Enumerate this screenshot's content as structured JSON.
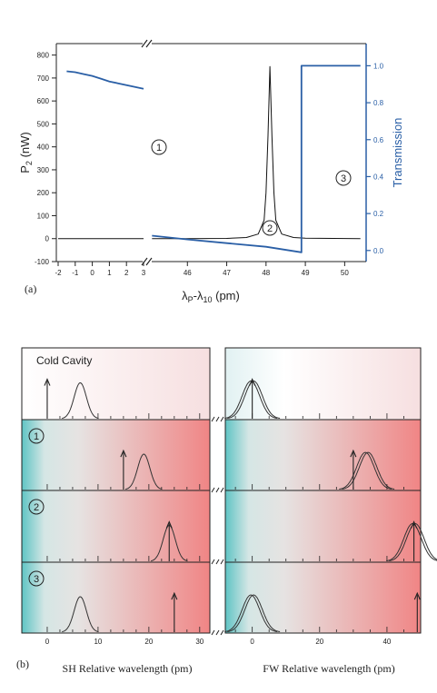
{
  "panel_a": {
    "label": "(a)",
    "xlabel_main": "λP-λ10 (pm)",
    "ylabel_left": "P2 (nW)",
    "ylabel_right": "Transmission",
    "region_markers": [
      "1",
      "2",
      "3"
    ],
    "colors": {
      "p2": "#111111",
      "transmission": "#2a5fa6",
      "axis_right": "#2a5fa6"
    }
  },
  "panel_b": {
    "label": "(b)",
    "rows": [
      {
        "name": "Cold Cavity",
        "marker": ""
      },
      {
        "name": "",
        "marker": "1"
      },
      {
        "name": "",
        "marker": "2"
      },
      {
        "name": "",
        "marker": "3"
      }
    ],
    "xlabel_left": "SH Relative wavelength (pm)",
    "xlabel_right": "FW Relative wavelength (pm)",
    "colors": {
      "cyan": "#5fc4c4",
      "mid": "#e6e3e2",
      "red": "#f08585"
    }
  },
  "chart_data": [
    {
      "type": "line",
      "title": "",
      "xlabel": "λP-λ10 (pm)",
      "ylabel": "P2 (nW)",
      "y2label": "Transmission",
      "left_segment": {
        "xlim": [
          -2,
          3
        ],
        "xticks": [
          -2,
          -1,
          0,
          1,
          2,
          3
        ]
      },
      "right_segment": {
        "xlim": [
          45,
          50.5
        ],
        "xticks": [
          46,
          47,
          48,
          49,
          50
        ]
      },
      "ylim": [
        -100,
        850
      ],
      "yticks": [
        -100,
        0,
        100,
        200,
        300,
        400,
        500,
        600,
        700,
        800
      ],
      "y2lim": [
        -0.06,
        1.12
      ],
      "y2ticks": [
        0.0,
        0.2,
        0.4,
        0.6,
        0.8,
        1.0
      ],
      "grid": false,
      "series": [
        {
          "name": "P2",
          "axis": "left",
          "left_points": [
            [
              -2,
              0
            ],
            [
              3,
              0
            ]
          ],
          "right_points": [
            [
              45.1,
              0
            ],
            [
              46,
              0
            ],
            [
              47,
              1
            ],
            [
              47.5,
              5
            ],
            [
              47.8,
              20
            ],
            [
              47.95,
              80
            ],
            [
              48.0,
              200
            ],
            [
              48.05,
              450
            ],
            [
              48.1,
              750
            ],
            [
              48.15,
              450
            ],
            [
              48.2,
              200
            ],
            [
              48.25,
              80
            ],
            [
              48.4,
              20
            ],
            [
              48.7,
              5
            ],
            [
              49.0,
              2
            ],
            [
              50.4,
              0
            ]
          ]
        },
        {
          "name": "Transmission",
          "axis": "right",
          "left_points": [
            [
              -1.5,
              0.97
            ],
            [
              -1.0,
              0.965
            ],
            [
              -0.5,
              0.955
            ],
            [
              0.0,
              0.945
            ],
            [
              0.5,
              0.93
            ],
            [
              1.0,
              0.915
            ],
            [
              1.5,
              0.905
            ],
            [
              2.0,
              0.895
            ],
            [
              2.5,
              0.885
            ],
            [
              3.0,
              0.875
            ]
          ],
          "right_points": [
            [
              45.1,
              0.08
            ],
            [
              46,
              0.06
            ],
            [
              47,
              0.04
            ],
            [
              48,
              0.02
            ],
            [
              48.9,
              -0.01
            ],
            [
              48.9,
              1.0
            ],
            [
              50.4,
              1.0
            ]
          ]
        }
      ],
      "annotations": [
        "1",
        "2",
        "3"
      ]
    },
    {
      "type": "line",
      "title": "",
      "xlabel": "SH Relative wavelength (pm)",
      "xlim": [
        -5,
        32
      ],
      "xticks": [
        0,
        10,
        20,
        30
      ],
      "rows": [
        {
          "label": "Cold Cavity",
          "peak_center": 6.5,
          "arrow": 0
        },
        {
          "label": "1",
          "peak_center": 19,
          "arrow": 15
        },
        {
          "label": "2",
          "peak_center": 24,
          "arrow": 24
        },
        {
          "label": "3",
          "peak_center": 6.5,
          "arrow": 25
        }
      ]
    },
    {
      "type": "line",
      "title": "",
      "xlabel": "FW Relative wavelength (pm)",
      "xlim": [
        -8,
        50
      ],
      "xticks": [
        0,
        20,
        40
      ],
      "rows": [
        {
          "label": "Cold Cavity",
          "peak_center": 0,
          "arrow": 0
        },
        {
          "label": "1",
          "peak_center": 34,
          "arrow": 30
        },
        {
          "label": "2",
          "peak_center": 48,
          "arrow": 48
        },
        {
          "label": "3",
          "peak_center": 0,
          "arrow": 49
        }
      ]
    }
  ]
}
